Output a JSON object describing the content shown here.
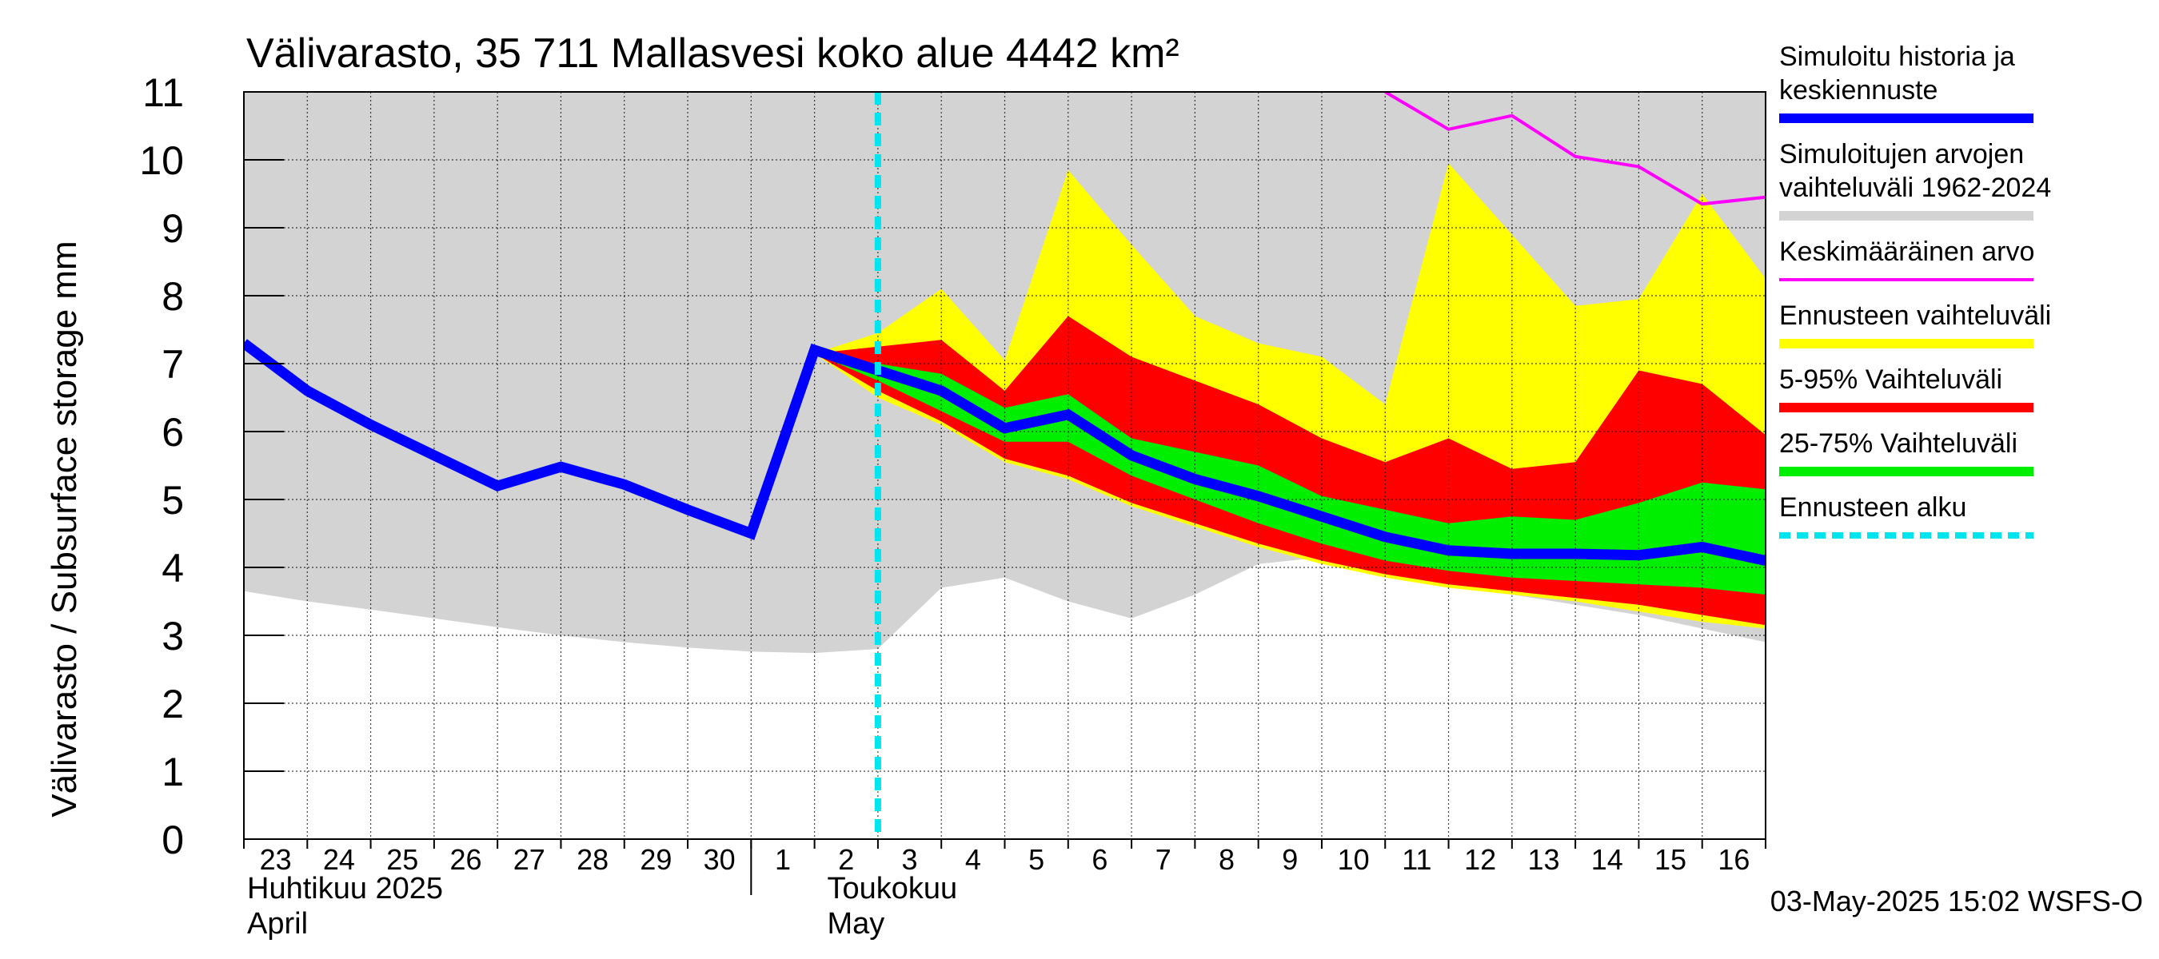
{
  "chart_data": {
    "type": "area",
    "title": "Välivarasto, 35 711 Mallasvesi koko alue 4442 km²",
    "ylabel": "Välivarasto / Subsurface storage  mm",
    "ylim": [
      0,
      11
    ],
    "yticks": [
      0,
      1,
      2,
      3,
      4,
      5,
      6,
      7,
      8,
      9,
      10,
      11
    ],
    "xlim": [
      "2025-04-23",
      "2025-05-17"
    ],
    "x_tick_labels": [
      "23",
      "24",
      "25",
      "26",
      "27",
      "28",
      "29",
      "30",
      "1",
      "2",
      "3",
      "4",
      "5",
      "6",
      "7",
      "8",
      "9",
      "10",
      "11",
      "12",
      "13",
      "14",
      "15",
      "16"
    ],
    "month_labels": [
      {
        "fi": "Huhtikuu  2025",
        "en": "April"
      },
      {
        "fi": "Toukokuu",
        "en": "May"
      }
    ],
    "forecast_start": "2025-05-03",
    "footer": "03-May-2025 15:02 WSFS-O",
    "legend_placement": "right",
    "series": [
      {
        "name": "Simuloitujen arvojen vaihteluväli 1962-2024",
        "kind": "band",
        "color": "#d3d3d3",
        "x": [
          "2025-04-23",
          "2025-04-24",
          "2025-04-25",
          "2025-04-26",
          "2025-04-27",
          "2025-04-28",
          "2025-04-29",
          "2025-04-30",
          "2025-05-01",
          "2025-05-02",
          "2025-05-03",
          "2025-05-04",
          "2025-05-05",
          "2025-05-06",
          "2025-05-07",
          "2025-05-08",
          "2025-05-09",
          "2025-05-10",
          "2025-05-11",
          "2025-05-12",
          "2025-05-13",
          "2025-05-14",
          "2025-05-15",
          "2025-05-16",
          "2025-05-17"
        ],
        "low": [
          3.65,
          3.5,
          3.38,
          3.25,
          3.12,
          3.0,
          2.9,
          2.82,
          2.76,
          2.74,
          2.8,
          3.7,
          3.85,
          3.5,
          3.25,
          3.6,
          4.05,
          4.15,
          3.95,
          3.75,
          3.6,
          3.45,
          3.3,
          3.1,
          2.9
        ],
        "high": [
          11,
          11,
          11,
          11,
          11,
          11,
          11,
          11,
          11,
          11,
          11,
          11,
          11,
          11,
          11,
          11,
          11,
          11,
          11,
          11,
          11,
          11,
          11,
          11,
          11
        ]
      },
      {
        "name": "Ennusteen vaihteluväli",
        "kind": "band",
        "color": "#ffff00",
        "x": [
          "2025-05-02",
          "2025-05-03",
          "2025-05-04",
          "2025-05-05",
          "2025-05-06",
          "2025-05-07",
          "2025-05-08",
          "2025-05-09",
          "2025-05-10",
          "2025-05-11",
          "2025-05-12",
          "2025-05-13",
          "2025-05-14",
          "2025-05-15",
          "2025-05-16",
          "2025-05-17"
        ],
        "low": [
          7.15,
          6.5,
          6.1,
          5.55,
          5.3,
          4.9,
          4.6,
          4.3,
          4.05,
          3.85,
          3.7,
          3.6,
          3.5,
          3.35,
          3.2,
          3.1
        ],
        "high": [
          7.15,
          7.45,
          8.1,
          7.05,
          9.85,
          8.75,
          7.7,
          7.3,
          7.1,
          6.4,
          9.95,
          8.9,
          7.85,
          7.95,
          9.5,
          8.25
        ]
      },
      {
        "name": "5-95% Vaihteluväli",
        "kind": "band",
        "color": "#ff0000",
        "x": [
          "2025-05-02",
          "2025-05-03",
          "2025-05-04",
          "2025-05-05",
          "2025-05-06",
          "2025-05-07",
          "2025-05-08",
          "2025-05-09",
          "2025-05-10",
          "2025-05-11",
          "2025-05-12",
          "2025-05-13",
          "2025-05-14",
          "2025-05-15",
          "2025-05-16",
          "2025-05-17"
        ],
        "low": [
          7.15,
          6.6,
          6.15,
          5.6,
          5.35,
          4.95,
          4.65,
          4.35,
          4.1,
          3.9,
          3.75,
          3.65,
          3.55,
          3.45,
          3.3,
          3.15
        ],
        "high": [
          7.15,
          7.25,
          7.35,
          6.6,
          7.7,
          7.1,
          6.75,
          6.4,
          5.9,
          5.55,
          5.9,
          5.45,
          5.55,
          6.9,
          6.7,
          5.95
        ]
      },
      {
        "name": "25-75% Vaihteluväli",
        "kind": "band",
        "color": "#00ee00",
        "x": [
          "2025-05-02",
          "2025-05-03",
          "2025-05-04",
          "2025-05-05",
          "2025-05-06",
          "2025-05-07",
          "2025-05-08",
          "2025-05-09",
          "2025-05-10",
          "2025-05-11",
          "2025-05-12",
          "2025-05-13",
          "2025-05-14",
          "2025-05-15",
          "2025-05-16",
          "2025-05-17"
        ],
        "low": [
          7.15,
          6.75,
          6.3,
          5.85,
          5.85,
          5.35,
          5.0,
          4.65,
          4.35,
          4.1,
          3.95,
          3.85,
          3.8,
          3.75,
          3.7,
          3.6
        ],
        "high": [
          7.15,
          7.0,
          6.85,
          6.35,
          6.55,
          5.9,
          5.7,
          5.5,
          5.05,
          4.85,
          4.65,
          4.75,
          4.7,
          4.95,
          5.25,
          5.15
        ]
      },
      {
        "name": "Keskimääräinen arvo",
        "kind": "line",
        "color": "#ff00ff",
        "x": [
          "2025-05-11",
          "2025-05-12",
          "2025-05-13",
          "2025-05-14",
          "2025-05-15",
          "2025-05-16",
          "2025-05-17"
        ],
        "y": [
          11.0,
          10.45,
          10.65,
          10.05,
          9.9,
          9.35,
          9.45
        ]
      },
      {
        "name": "Simuloitu historia ja keskiennuste",
        "kind": "line",
        "color": "#0000ff",
        "x": [
          "2025-04-23",
          "2025-04-24",
          "2025-04-25",
          "2025-04-26",
          "2025-04-27",
          "2025-04-28",
          "2025-04-29",
          "2025-04-30",
          "2025-05-01",
          "2025-05-02",
          "2025-05-03",
          "2025-05-04",
          "2025-05-05",
          "2025-05-06",
          "2025-05-07",
          "2025-05-08",
          "2025-05-09",
          "2025-05-10",
          "2025-05-11",
          "2025-05-12",
          "2025-05-13",
          "2025-05-14",
          "2025-05-15",
          "2025-05-16",
          "2025-05-17"
        ],
        "y": [
          7.3,
          6.6,
          6.1,
          5.65,
          5.2,
          5.48,
          5.22,
          4.85,
          4.5,
          7.2,
          6.9,
          6.6,
          6.05,
          6.25,
          5.65,
          5.3,
          5.05,
          4.75,
          4.45,
          4.25,
          4.2,
          4.2,
          4.18,
          4.3,
          4.1
        ]
      },
      {
        "name": "Ennusteen alku",
        "kind": "vline",
        "color": "#00e5ee",
        "x": "2025-05-03"
      }
    ],
    "legend": [
      {
        "label_lines": [
          "Simuloitu historia ja",
          "keskiennuste"
        ],
        "color": "#0000ff",
        "style": "thick"
      },
      {
        "label_lines": [
          "Simuloitujen arvojen",
          "vaihteluväli 1962-2024"
        ],
        "color": "#d3d3d3",
        "style": "thick"
      },
      {
        "label_lines": [
          "Keskimääräinen arvo"
        ],
        "color": "#ff00ff",
        "style": "thin"
      },
      {
        "label_lines": [
          "Ennusteen vaihteluväli"
        ],
        "color": "#ffff00",
        "style": "thick"
      },
      {
        "label_lines": [
          "5-95% Vaihteluväli"
        ],
        "color": "#ff0000",
        "style": "thick"
      },
      {
        "label_lines": [
          "25-75% Vaihteluväli"
        ],
        "color": "#00ee00",
        "style": "thick"
      },
      {
        "label_lines": [
          "Ennusteen alku"
        ],
        "color": "#00e5ee",
        "style": "dashed"
      }
    ]
  }
}
